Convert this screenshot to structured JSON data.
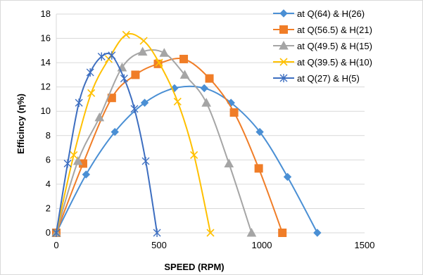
{
  "chart_data": {
    "type": "scatter",
    "title": "",
    "xlabel": "SPEED (RPM)",
    "ylabel": "Efficincy (η%)",
    "xlim": [
      0,
      1500
    ],
    "ylim": [
      0,
      18
    ],
    "x_ticks": [
      "0",
      "500",
      "1000",
      "1500"
    ],
    "y_ticks": [
      "0",
      "2",
      "4",
      "6",
      "8",
      "10",
      "12",
      "14",
      "16",
      "18"
    ],
    "grid": "horizontal",
    "legend_position": "right",
    "series": [
      {
        "name": "at Q(64) & H(26)",
        "color": "#4a8fd4",
        "marker": "diamond",
        "x": [
          0,
          145,
          285,
          430,
          575,
          720,
          850,
          990,
          1125,
          1270
        ],
        "y": [
          0,
          4.8,
          8.3,
          10.7,
          11.9,
          11.9,
          10.7,
          8.3,
          4.6,
          0
        ]
      },
      {
        "name": "at Q(56.5) & H(21)",
        "color": "#f07d27",
        "marker": "square",
        "x": [
          0,
          130,
          270,
          385,
          495,
          620,
          745,
          865,
          985,
          1100
        ],
        "y": [
          0,
          5.7,
          11.1,
          13.0,
          13.9,
          14.3,
          12.7,
          9.9,
          5.3,
          0
        ]
      },
      {
        "name": "at Q(49.5) & H(15)",
        "color": "#a5a5a5",
        "marker": "triangle",
        "x": [
          0,
          105,
          210,
          320,
          420,
          525,
          625,
          730,
          840,
          950
        ],
        "y": [
          0,
          5.9,
          9.5,
          13.6,
          14.9,
          14.8,
          13.0,
          10.7,
          5.7,
          0
        ]
      },
      {
        "name": "at Q(39.5) & H(10)",
        "color": "#ffc000",
        "marker": "x",
        "x": [
          0,
          85,
          170,
          255,
          340,
          425,
          500,
          590,
          670,
          750
        ],
        "y": [
          0,
          6.4,
          11.5,
          14.3,
          16.3,
          15.8,
          14.0,
          10.8,
          6.4,
          0
        ]
      },
      {
        "name": "at Q(27) & H(5)",
        "color": "#3d6ec0",
        "marker": "asterisk",
        "x": [
          0,
          55,
          110,
          165,
          220,
          270,
          330,
          380,
          435,
          490
        ],
        "y": [
          0,
          5.7,
          10.7,
          13.2,
          14.5,
          14.6,
          12.7,
          10.2,
          5.9,
          0
        ]
      }
    ]
  }
}
